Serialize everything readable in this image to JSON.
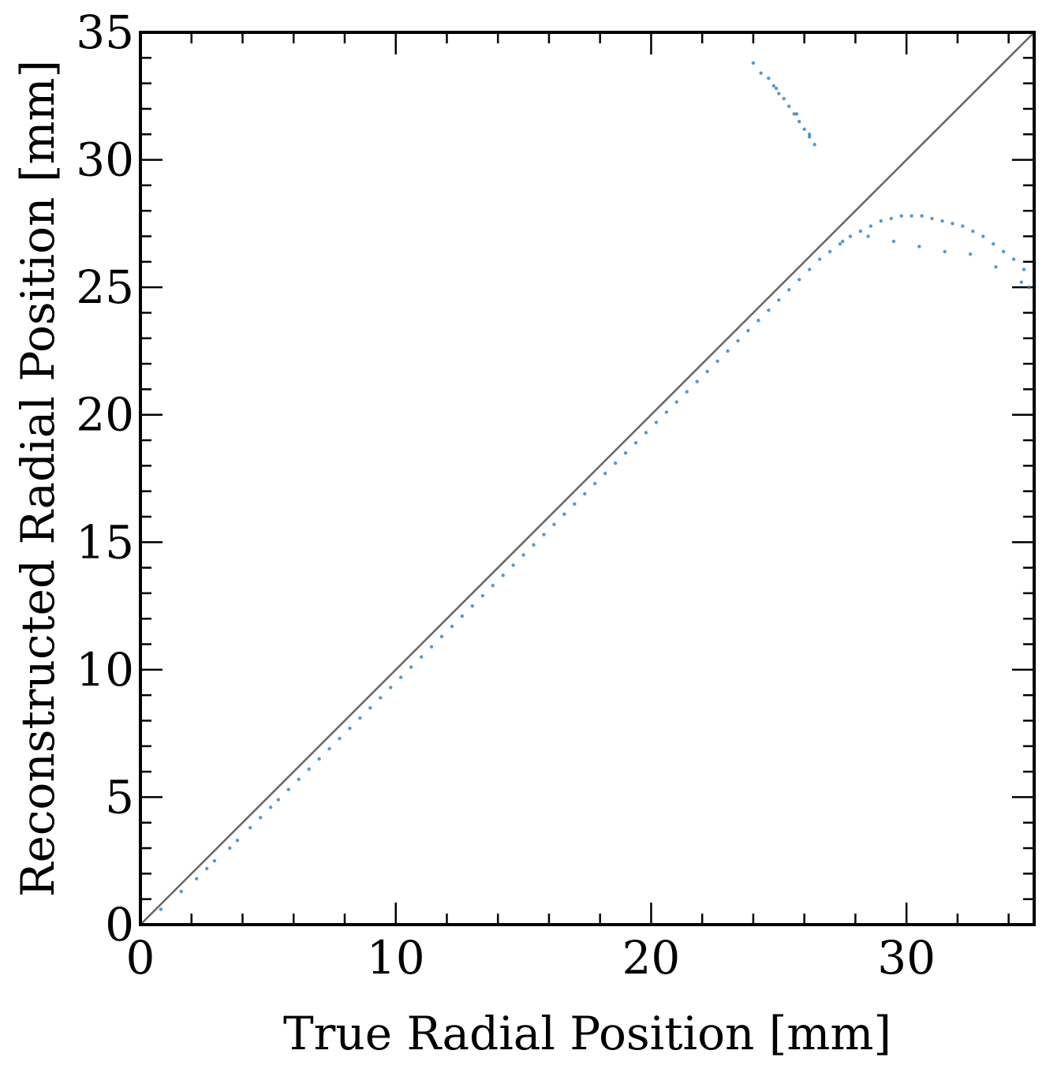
{
  "chart_data": {
    "type": "scatter",
    "xlabel": "True Radial Position [mm]",
    "ylabel": "Reconstructed Radial Position [mm]",
    "xlim": [
      0,
      35
    ],
    "ylim": [
      0,
      35
    ],
    "x_ticks": [
      0,
      10,
      20,
      30
    ],
    "x_tick_labels": [
      "0",
      "10",
      "20",
      "30"
    ],
    "y_ticks": [
      0,
      5,
      10,
      15,
      20,
      25,
      30,
      35
    ],
    "y_tick_labels": [
      "0",
      "5",
      "10",
      "15",
      "20",
      "25",
      "30",
      "35"
    ],
    "x_minor_step": 2,
    "y_minor_step": 1,
    "grid": false,
    "reference_line": {
      "x": [
        0,
        35
      ],
      "y": [
        0,
        35
      ],
      "color": "#666666"
    },
    "series": [
      {
        "color": "#1f77b4",
        "x": [
          0.8,
          1.6,
          2.2,
          2.6,
          2.9,
          3.5,
          3.8,
          4.3,
          4.7,
          5.1,
          5.4,
          5.8,
          6.2,
          6.6,
          7.0,
          7.4,
          7.8,
          8.2,
          8.6,
          9.0,
          9.4,
          9.8,
          10.2,
          10.6,
          11.0,
          11.4,
          11.8,
          12.2,
          12.6,
          13.0,
          13.4,
          13.8,
          14.2,
          14.6,
          15.0,
          15.4,
          15.8,
          16.2,
          16.6,
          17.0,
          17.4,
          17.8,
          18.2,
          18.6,
          19.0,
          19.4,
          19.8,
          20.2,
          20.6,
          21.0,
          21.4,
          21.8,
          22.2,
          22.6,
          23.0,
          23.4,
          23.8,
          24.2,
          24.6,
          25.0,
          25.4,
          25.8,
          26.2,
          26.6,
          27.0,
          27.4,
          27.8,
          28.2,
          28.6,
          29.0,
          29.4,
          29.8,
          30.2,
          30.6,
          31.0,
          31.4,
          31.8,
          32.2,
          32.6,
          33.0,
          33.4,
          33.8,
          34.2,
          34.6,
          35.0,
          24.9,
          25.7,
          26.2,
          27.5,
          28.5,
          29.5,
          30.5,
          31.5,
          32.5,
          33.5,
          34.5,
          34.8
        ],
        "y": [
          0.6,
          1.3,
          1.8,
          2.2,
          2.5,
          3.0,
          3.3,
          3.8,
          4.2,
          4.6,
          4.9,
          5.3,
          5.7,
          6.1,
          6.5,
          6.9,
          7.3,
          7.7,
          8.1,
          8.5,
          8.9,
          9.3,
          9.7,
          10.1,
          10.5,
          10.9,
          11.3,
          11.7,
          12.1,
          12.5,
          12.9,
          13.3,
          13.7,
          14.1,
          14.5,
          14.9,
          15.3,
          15.7,
          16.1,
          16.5,
          16.9,
          17.3,
          17.7,
          18.1,
          18.5,
          18.9,
          19.3,
          19.7,
          20.1,
          20.5,
          20.9,
          21.3,
          21.7,
          22.1,
          22.5,
          22.9,
          23.3,
          23.7,
          24.1,
          24.5,
          24.9,
          25.3,
          25.7,
          26.1,
          26.4,
          26.7,
          27.0,
          27.2,
          27.4,
          27.6,
          27.7,
          27.8,
          27.8,
          27.8,
          27.7,
          27.6,
          27.5,
          27.4,
          27.2,
          27.0,
          26.7,
          26.4,
          26.1,
          25.7,
          25.3,
          32.8,
          31.8,
          31.0,
          26.8,
          27.0,
          26.8,
          26.6,
          26.4,
          26.3,
          25.8,
          25.2,
          25.0
        ]
      },
      {
        "color": "#1f77b4",
        "x": [
          24.0,
          24.3,
          24.6,
          24.8,
          25.0,
          25.2,
          25.4,
          25.6,
          25.8,
          26.0,
          26.2,
          26.4
        ],
        "y": [
          33.8,
          33.4,
          33.2,
          32.9,
          32.6,
          32.4,
          32.1,
          31.8,
          31.5,
          31.2,
          30.9,
          30.6
        ]
      }
    ]
  }
}
